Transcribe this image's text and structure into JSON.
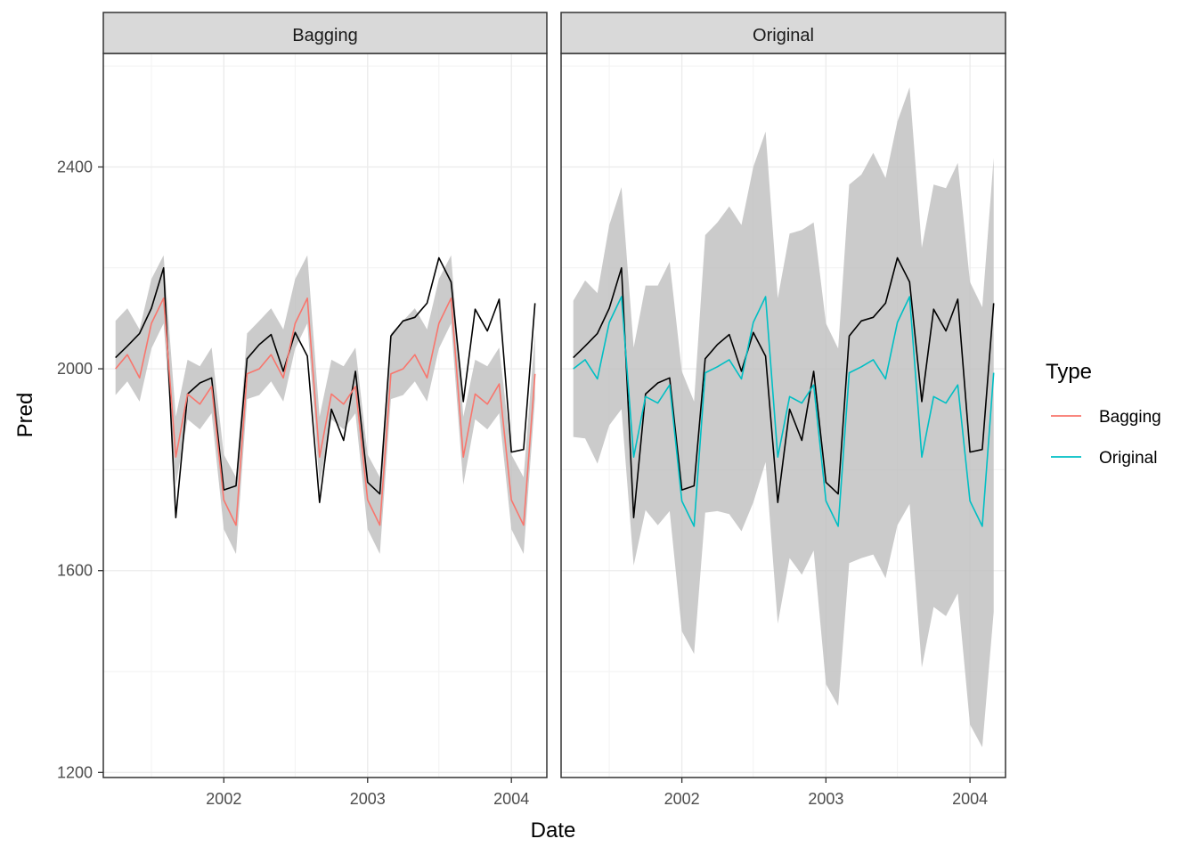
{
  "chart_data": {
    "type": "line",
    "facet_labels": [
      "Bagging",
      "Original"
    ],
    "xlabel": "Date",
    "ylabel": "Pred",
    "x_ticks": [
      "2002",
      "2003",
      "2004"
    ],
    "y_ticks": [
      "1200",
      "1600",
      "2000",
      "2400"
    ],
    "ylim": [
      1190,
      2625
    ],
    "xlim": [
      "2001-03-01",
      "2004-03-31"
    ],
    "grid": true,
    "legend": {
      "title": "Type",
      "position": "right",
      "entries": [
        "Bagging",
        "Original"
      ]
    },
    "x": [
      "2001-04-01",
      "2001-05-01",
      "2001-06-01",
      "2001-07-01",
      "2001-08-01",
      "2001-09-01",
      "2001-10-01",
      "2001-11-01",
      "2001-12-01",
      "2002-01-01",
      "2002-02-01",
      "2002-03-01",
      "2002-04-01",
      "2002-05-01",
      "2002-06-01",
      "2002-07-01",
      "2002-08-01",
      "2002-09-01",
      "2002-10-01",
      "2002-11-01",
      "2002-12-01",
      "2003-01-01",
      "2003-02-01",
      "2003-03-01",
      "2003-04-01",
      "2003-05-01",
      "2003-06-01",
      "2003-07-01",
      "2003-08-01",
      "2003-09-01",
      "2003-10-01",
      "2003-11-01",
      "2003-12-01",
      "2004-01-01",
      "2004-02-01",
      "2004-03-01"
    ],
    "actual": [
      2022,
      2045,
      2070,
      2120,
      2200,
      1705,
      1950,
      1972,
      1982,
      1760,
      1768,
      2020,
      2048,
      2068,
      1995,
      2072,
      2025,
      1735,
      1920,
      1858,
      1995,
      1775,
      1752,
      2065,
      2095,
      2102,
      2130,
      2220,
      2172,
      1935,
      2118,
      2075,
      2138,
      1835,
      1840,
      2130
    ],
    "series": [
      {
        "name": "Bagging",
        "color": "#F8766D",
        "values": [
          2000,
          2028,
          1982,
          2090,
          2140,
          1825,
          1950,
          1930,
          1965,
          1740,
          1690,
          1990,
          2000,
          2028,
          1982,
          2090,
          2140,
          1825,
          1950,
          1930,
          1965,
          1740,
          1690,
          1990,
          2000,
          2028,
          1982,
          2090,
          2140,
          1825,
          1950,
          1930,
          1970,
          1740,
          1690,
          1990
        ],
        "lower": [
          1948,
          1975,
          1935,
          2040,
          2090,
          1770,
          1900,
          1880,
          1912,
          1682,
          1633,
          1940,
          1948,
          1975,
          1935,
          2040,
          2090,
          1770,
          1900,
          1880,
          1912,
          1682,
          1633,
          1940,
          1948,
          1975,
          1935,
          2040,
          2090,
          1770,
          1900,
          1880,
          1912,
          1682,
          1633,
          1940
        ],
        "upper": [
          2095,
          2120,
          2078,
          2178,
          2225,
          1905,
          2018,
          2005,
          2042,
          1830,
          1785,
          2070,
          2095,
          2120,
          2078,
          2178,
          2225,
          1905,
          2018,
          2005,
          2042,
          1830,
          1785,
          2070,
          2095,
          2120,
          2078,
          2178,
          2225,
          1905,
          2018,
          2005,
          2042,
          1830,
          1785,
          2070
        ]
      },
      {
        "name": "Original",
        "color": "#00BFC4",
        "values": [
          2000,
          2018,
          1980,
          2092,
          2143,
          1825,
          1945,
          1932,
          1968,
          1738,
          1688,
          1992,
          2004,
          2018,
          1980,
          2092,
          2143,
          1825,
          1945,
          1932,
          1968,
          1738,
          1688,
          1992,
          2004,
          2018,
          1980,
          2092,
          2143,
          1825,
          1945,
          1932,
          1968,
          1738,
          1688,
          1992
        ],
        "lower": [
          1865,
          1862,
          1812,
          1888,
          1920,
          1610,
          1720,
          1690,
          1718,
          1480,
          1435,
          1715,
          1718,
          1712,
          1678,
          1735,
          1815,
          1495,
          1625,
          1592,
          1640,
          1375,
          1332,
          1615,
          1625,
          1632,
          1585,
          1690,
          1732,
          1408,
          1528,
          1510,
          1555,
          1295,
          1250,
          1518
        ],
        "upper": [
          2135,
          2175,
          2150,
          2285,
          2360,
          2042,
          2165,
          2165,
          2212,
          1995,
          1935,
          2265,
          2290,
          2322,
          2285,
          2400,
          2470,
          2140,
          2268,
          2275,
          2290,
          2090,
          2040,
          2365,
          2385,
          2428,
          2378,
          2490,
          2558,
          2240,
          2365,
          2358,
          2408,
          2172,
          2122,
          2418
        ]
      }
    ]
  }
}
